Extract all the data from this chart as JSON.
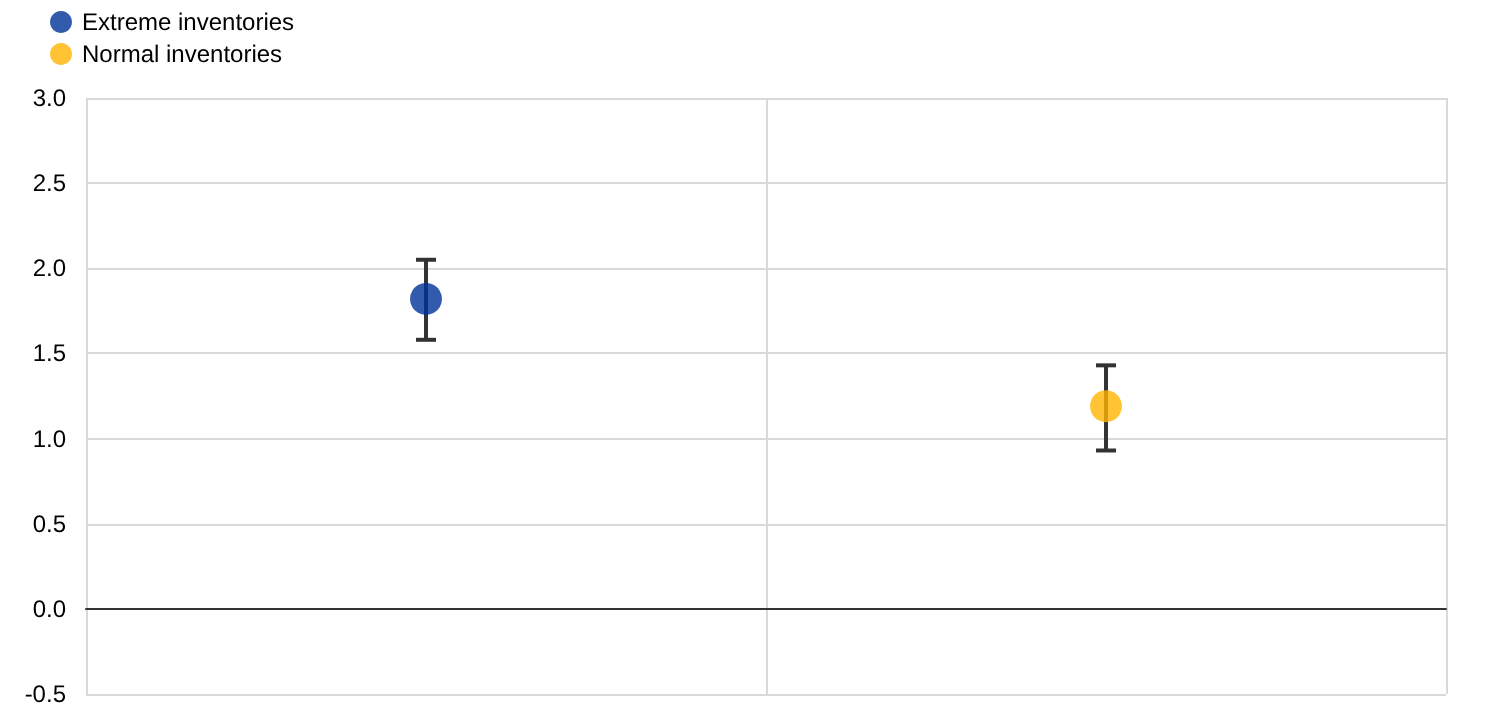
{
  "chart_data": {
    "type": "scatter",
    "categories": [
      null,
      null
    ],
    "series": [
      {
        "name": "Extreme inventories",
        "color": "#003299",
        "values": [
          1.82,
          null
        ],
        "errors": [
          [
            1.58,
            2.05
          ],
          null
        ]
      },
      {
        "name": "Normal inventories",
        "color": "#ffb400",
        "values": [
          null,
          1.19
        ],
        "errors": [
          null,
          [
            0.93,
            1.43
          ]
        ]
      }
    ],
    "ylim": [
      -0.5,
      3.0
    ],
    "yticks": [
      {
        "value": -0.5,
        "label": "-0.5"
      },
      {
        "value": 0,
        "label": "0.0"
      },
      {
        "value": 0.5,
        "label": "0.5"
      },
      {
        "value": 1,
        "label": "1.0"
      },
      {
        "value": 1.5,
        "label": "1.5"
      },
      {
        "value": 2,
        "label": "2.0"
      },
      {
        "value": 2.5,
        "label": "2.5"
      },
      {
        "value": 3,
        "label": "3.0"
      }
    ],
    "grid": true,
    "legend": "top left",
    "marker": "circle"
  }
}
